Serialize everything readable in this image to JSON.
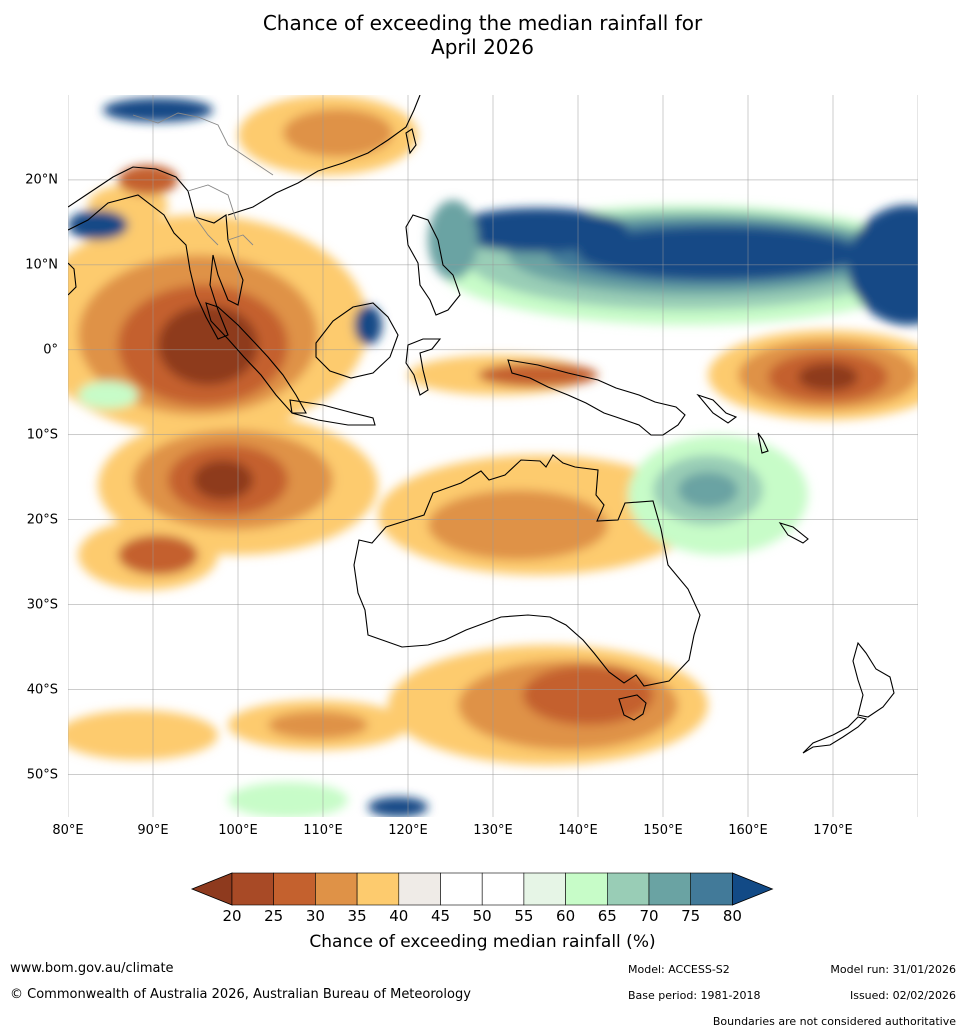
{
  "title": {
    "line1": "Chance of exceeding the median rainfall for",
    "line2": "April 2026"
  },
  "map": {
    "lon_labels": [
      "80°E",
      "90°E",
      "100°E",
      "110°E",
      "120°E",
      "130°E",
      "140°E",
      "150°E",
      "160°E",
      "170°E"
    ],
    "lat_labels": [
      "20°N",
      "10°N",
      "0°",
      "10°S",
      "20°S",
      "30°S",
      "40°S",
      "50°S"
    ],
    "lon_range": [
      80,
      180
    ],
    "lat_range": [
      -55,
      30
    ],
    "colors": {
      "dark_brown": "#8e3a1e",
      "brown": "#c4612e",
      "orange": "#df9247",
      "yellow": "#fdcb6e",
      "light_grey": "#efebe7",
      "white": "#ffffff",
      "pale_green": "#e6f5e6",
      "light_green": "#c7fcc8",
      "teal_light": "#99cdb6",
      "teal": "#6aa3a3",
      "blue_mid": "#427a99",
      "navy": "#124a86"
    }
  },
  "colorbar": {
    "ticks": [
      "20",
      "25",
      "30",
      "35",
      "40",
      "45",
      "50",
      "55",
      "60",
      "65",
      "70",
      "75",
      "80"
    ],
    "colors": [
      "#8e3a1e",
      "#a84a26",
      "#c4612e",
      "#df9247",
      "#fdcb6e",
      "#efebe7",
      "#ffffff",
      "#ffffff",
      "#e6f5e6",
      "#c7fcc8",
      "#99cdb6",
      "#6aa3a3",
      "#427a99",
      "#124a86"
    ],
    "label": "Chance of exceeding median rainfall (%)"
  },
  "footer": {
    "website": "www.bom.gov.au/climate",
    "copyright": "© Commonwealth of Australia 2026, Australian Bureau of Meteorology",
    "model": "Model: ACCESS-S2",
    "base_period": "Base period: 1981-2018",
    "model_run": "Model run: 31/01/2026",
    "issued": "Issued: 02/02/2026",
    "disclaimer": "Boundaries are not considered authoritative"
  }
}
